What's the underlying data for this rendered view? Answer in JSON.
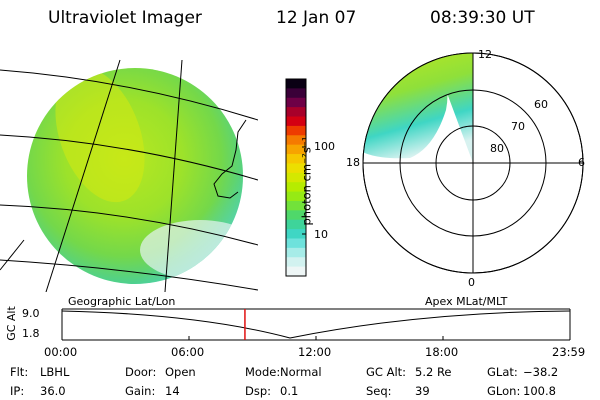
{
  "header": {
    "instrument": "Ultraviolet Imager",
    "date": "12 Jan 07",
    "time": "08:39:30 UT"
  },
  "colorbar": {
    "unit_label": "photon cm⁻²s⁻¹",
    "ticks": [
      "100",
      "10"
    ],
    "colors": [
      "#0a0014",
      "#3a0038",
      "#6e0046",
      "#a8002a",
      "#d40012",
      "#ee3b00",
      "#f57a00",
      "#f7a400",
      "#f6c800",
      "#ecdf00",
      "#d4e800",
      "#b6ec00",
      "#96ea14",
      "#72e23a",
      "#4fd86a",
      "#3ed49a",
      "#3fd6c4",
      "#6ee2dc",
      "#a6ece8",
      "#d2f2f0",
      "#eef6f6"
    ]
  },
  "left_panel": {
    "caption": "Geographic Lat/Lon"
  },
  "right_panel": {
    "caption": "Apex MLat/MLT",
    "mlt_labels": {
      "top": "12",
      "right": "6",
      "left": "18",
      "bottom": "0"
    },
    "lat_labels": [
      "60",
      "70",
      "80"
    ]
  },
  "timeline": {
    "ylabel": "GC Alt",
    "yticks": [
      "9.0",
      "1.8"
    ],
    "xticks": [
      "00:00",
      "06:00",
      "12:00",
      "18:00",
      "23:59"
    ],
    "current_fraction": 0.3601
  },
  "status": {
    "row1": [
      {
        "label": "Flt:",
        "value": "LBHL"
      },
      {
        "label": "Door:",
        "value": "Open"
      },
      {
        "label": "Mode:",
        "value": "Normal"
      },
      {
        "label": "GC Alt:",
        "value": "5.2 Re"
      },
      {
        "label": "GLat:",
        "value": "−38.2"
      }
    ],
    "row2": [
      {
        "label": "IP:",
        "value": "36.0"
      },
      {
        "label": "Gain:",
        "value": "14"
      },
      {
        "label": "Dsp:",
        "value": "0.1"
      },
      {
        "label": "Seq:",
        "value": "39"
      },
      {
        "label": "GLon:",
        "value": "100.8"
      }
    ]
  }
}
